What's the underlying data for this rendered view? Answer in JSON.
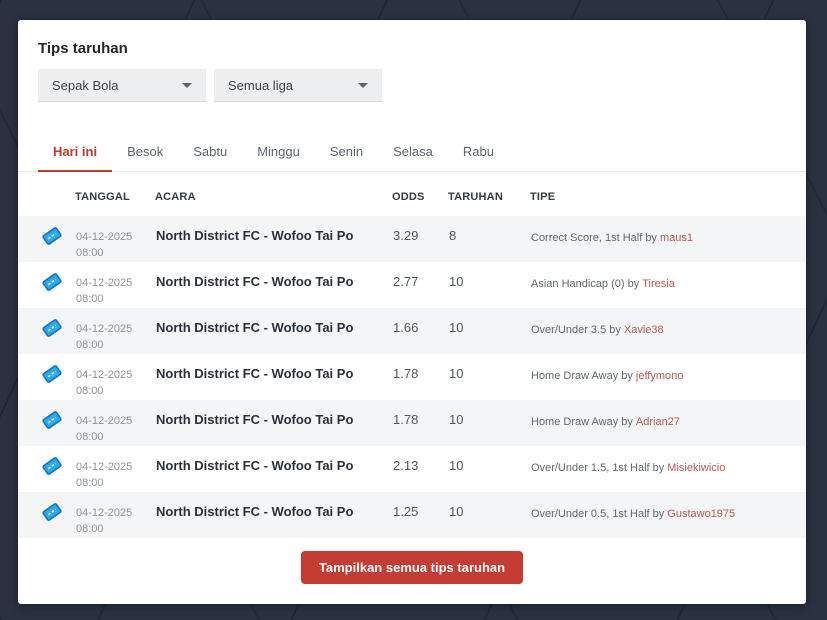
{
  "page": {
    "background_color": "#2a3140"
  },
  "card": {
    "title": "Tips taruhan",
    "filters": {
      "sport": "Sepak Bola",
      "league": "Semua liga"
    },
    "tabs": [
      {
        "label": "Hari ini",
        "active": true
      },
      {
        "label": "Besok",
        "active": false
      },
      {
        "label": "Sabtu",
        "active": false
      },
      {
        "label": "Minggu",
        "active": false
      },
      {
        "label": "Senin",
        "active": false
      },
      {
        "label": "Selasa",
        "active": false
      },
      {
        "label": "Rabu",
        "active": false
      }
    ],
    "table": {
      "headers": {
        "date": "TANGGAL",
        "event": "ACARA",
        "odds": "ODDS",
        "bet": "TARUHAN",
        "tip": "TIPE"
      },
      "rows": [
        {
          "date": "04-12-2025",
          "time": "08:00",
          "event": "North District FC - Wofoo Tai Po",
          "odds": "3.29",
          "bet": "8",
          "tip_text": "Correct Score, 1st Half by",
          "tip_user": "maus1"
        },
        {
          "date": "04-12-2025",
          "time": "08:00",
          "event": "North District FC - Wofoo Tai Po",
          "odds": "2.77",
          "bet": "10",
          "tip_text": "Asian Handicap (0) by",
          "tip_user": "Tiresia"
        },
        {
          "date": "04-12-2025",
          "time": "08:00",
          "event": "North District FC - Wofoo Tai Po",
          "odds": "1.66",
          "bet": "10",
          "tip_text": "Over/Under 3.5 by",
          "tip_user": "Xavie38"
        },
        {
          "date": "04-12-2025",
          "time": "08:00",
          "event": "North District FC - Wofoo Tai Po",
          "odds": "1.78",
          "bet": "10",
          "tip_text": "Home Draw Away by",
          "tip_user": "jeffymono"
        },
        {
          "date": "04-12-2025",
          "time": "08:00",
          "event": "North District FC - Wofoo Tai Po",
          "odds": "1.78",
          "bet": "10",
          "tip_text": "Home Draw Away by",
          "tip_user": "Adrian27"
        },
        {
          "date": "04-12-2025",
          "time": "08:00",
          "event": "North District FC - Wofoo Tai Po",
          "odds": "2.13",
          "bet": "10",
          "tip_text": "Over/Under 1.5, 1st Half by",
          "tip_user": "Misiekiwicio"
        },
        {
          "date": "04-12-2025",
          "time": "08:00",
          "event": "North District FC - Wofoo Tai Po",
          "odds": "1.25",
          "bet": "10",
          "tip_text": "Over/Under 0.5, 1st Half by",
          "tip_user": "Gustawo1975"
        }
      ]
    },
    "button_label": "Tampilkan semua tips taruhan",
    "icons": {
      "row_icon": "ticket-icon",
      "filter_icon": "chevron-down-icon"
    },
    "colors": {
      "accent_red": "#c0392b",
      "button_red": "#c43c32",
      "username_red": "#bd574d",
      "ticket_blue": "#1f9ce9",
      "background_dark": "#2a3140",
      "row_stripe": "#f4f5f7"
    }
  }
}
